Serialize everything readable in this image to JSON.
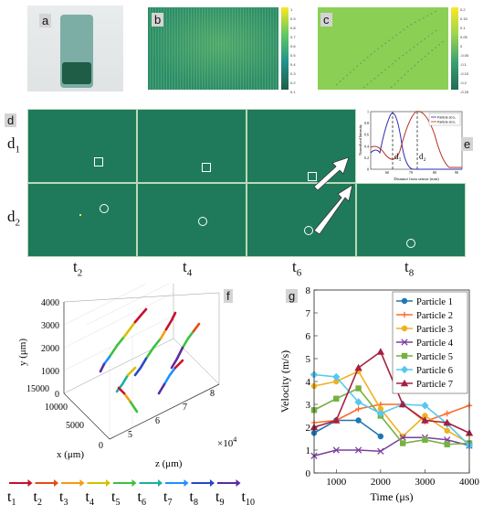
{
  "panels": {
    "a": "a",
    "b": "b",
    "c": "c",
    "d": "d",
    "e": "e",
    "f": "f",
    "g": "g"
  },
  "rows": {
    "d1": "d",
    "d1_sub": "1",
    "d2": "d",
    "d2_sub": "2"
  },
  "time_labels": [
    {
      "t": "t",
      "sub": "2"
    },
    {
      "t": "t",
      "sub": "4"
    },
    {
      "t": "t",
      "sub": "6"
    },
    {
      "t": "t",
      "sub": "8"
    }
  ],
  "colorbar_b": [
    "1",
    "0.9",
    "0.8",
    "0.7",
    "0.6",
    "0.5",
    "0.4",
    "0.3",
    "0.2",
    "0.1"
  ],
  "colorbar_c": [
    "0.2",
    "0.15",
    "0.1",
    "0.05",
    "0",
    "-0.05",
    "-0.1",
    "-0.15",
    "-0.2",
    "-0.25"
  ],
  "inset_e": {
    "ylabel": "Normalized Intensity",
    "xlabel": "Distance from sensor (mm)",
    "legend": [
      "Particle at d₁",
      "Particle at d₂"
    ],
    "xticks": [
      "60",
      "70",
      "80",
      "90"
    ],
    "yticks": [
      "0",
      "0.2",
      "0.4",
      "0.6",
      "0.8",
      "1"
    ],
    "d1": "d₁",
    "d2": "d₂"
  },
  "panel_f": {
    "ylabel": "y (μm)",
    "xlabel": "x (μm)",
    "zlabel": "z (μm)",
    "zexp": "×10",
    "zexp_sup": "4",
    "yticks": [
      "0",
      "1000",
      "2000",
      "3000",
      "4000"
    ],
    "xticks": [
      "0",
      "5000",
      "10000",
      "15000"
    ],
    "zticks": [
      "5",
      "6",
      "7",
      "8"
    ]
  },
  "time_arrow": {
    "labels": [
      "1",
      "2",
      "3",
      "4",
      "5",
      "6",
      "7",
      "8",
      "9",
      "10"
    ],
    "colors": [
      "#c8102e",
      "#e64a19",
      "#f39c12",
      "#d4c000",
      "#3fbf3f",
      "#1ab0a0",
      "#1e90ff",
      "#2848c8",
      "#5a2ca0",
      "#6a2ca0"
    ]
  },
  "chart_data": {
    "type": "line",
    "title": "",
    "xlabel": "Time (μs)",
    "ylabel": "Velocity (m/s)",
    "xlim": [
      500,
      4000
    ],
    "ylim": [
      0,
      8
    ],
    "xticks": [
      "1000",
      "2000",
      "3000",
      "4000"
    ],
    "yticks": [
      "0",
      "1",
      "2",
      "3",
      "4",
      "5",
      "6",
      "7",
      "8"
    ],
    "series": [
      {
        "name": "Particle 1",
        "color": "#1f77b4",
        "marker": "circle",
        "x": [
          500,
          1000,
          1500,
          2000
        ],
        "y": [
          1.75,
          2.3,
          2.3,
          1.6
        ]
      },
      {
        "name": "Particle 2",
        "color": "#ff6a2b",
        "marker": "plus",
        "x": [
          500,
          1000,
          1500,
          2000,
          2500,
          3000,
          3500,
          4000
        ],
        "y": [
          2.2,
          2.3,
          2.8,
          3.0,
          3.0,
          2.25,
          2.6,
          2.95
        ]
      },
      {
        "name": "Particle 3",
        "color": "#f0b020",
        "marker": "circle",
        "x": [
          500,
          1000,
          1500,
          2000,
          2500,
          3000,
          3500,
          4000
        ],
        "y": [
          3.8,
          4.0,
          4.45,
          2.8,
          1.6,
          2.5,
          1.85,
          1.3
        ]
      },
      {
        "name": "Particle 4",
        "color": "#7b3fa0",
        "marker": "x",
        "x": [
          500,
          1000,
          1500,
          2000,
          2500,
          3000,
          3500,
          4000
        ],
        "y": [
          0.75,
          1.0,
          1.0,
          0.95,
          1.55,
          1.55,
          1.45,
          1.2
        ]
      },
      {
        "name": "Particle 5",
        "color": "#77b041",
        "marker": "square",
        "x": [
          500,
          1000,
          1500,
          2000,
          2500,
          3000,
          3500,
          4000
        ],
        "y": [
          2.75,
          3.25,
          3.7,
          2.5,
          1.3,
          1.45,
          1.25,
          1.3
        ]
      },
      {
        "name": "Particle 6",
        "color": "#55c8f0",
        "marker": "diamond",
        "x": [
          500,
          1000,
          1500,
          2000,
          2500,
          3000,
          3500,
          4000
        ],
        "y": [
          4.3,
          4.2,
          3.1,
          2.6,
          3.0,
          2.95,
          2.15,
          1.2
        ]
      },
      {
        "name": "Particle 7",
        "color": "#a52040",
        "marker": "triangle",
        "x": [
          500,
          1000,
          1500,
          2000,
          2500,
          3000,
          3500,
          4000
        ],
        "y": [
          2.0,
          2.3,
          4.6,
          5.3,
          3.0,
          2.3,
          2.2,
          1.75
        ]
      }
    ],
    "legend_position": "top-right"
  }
}
